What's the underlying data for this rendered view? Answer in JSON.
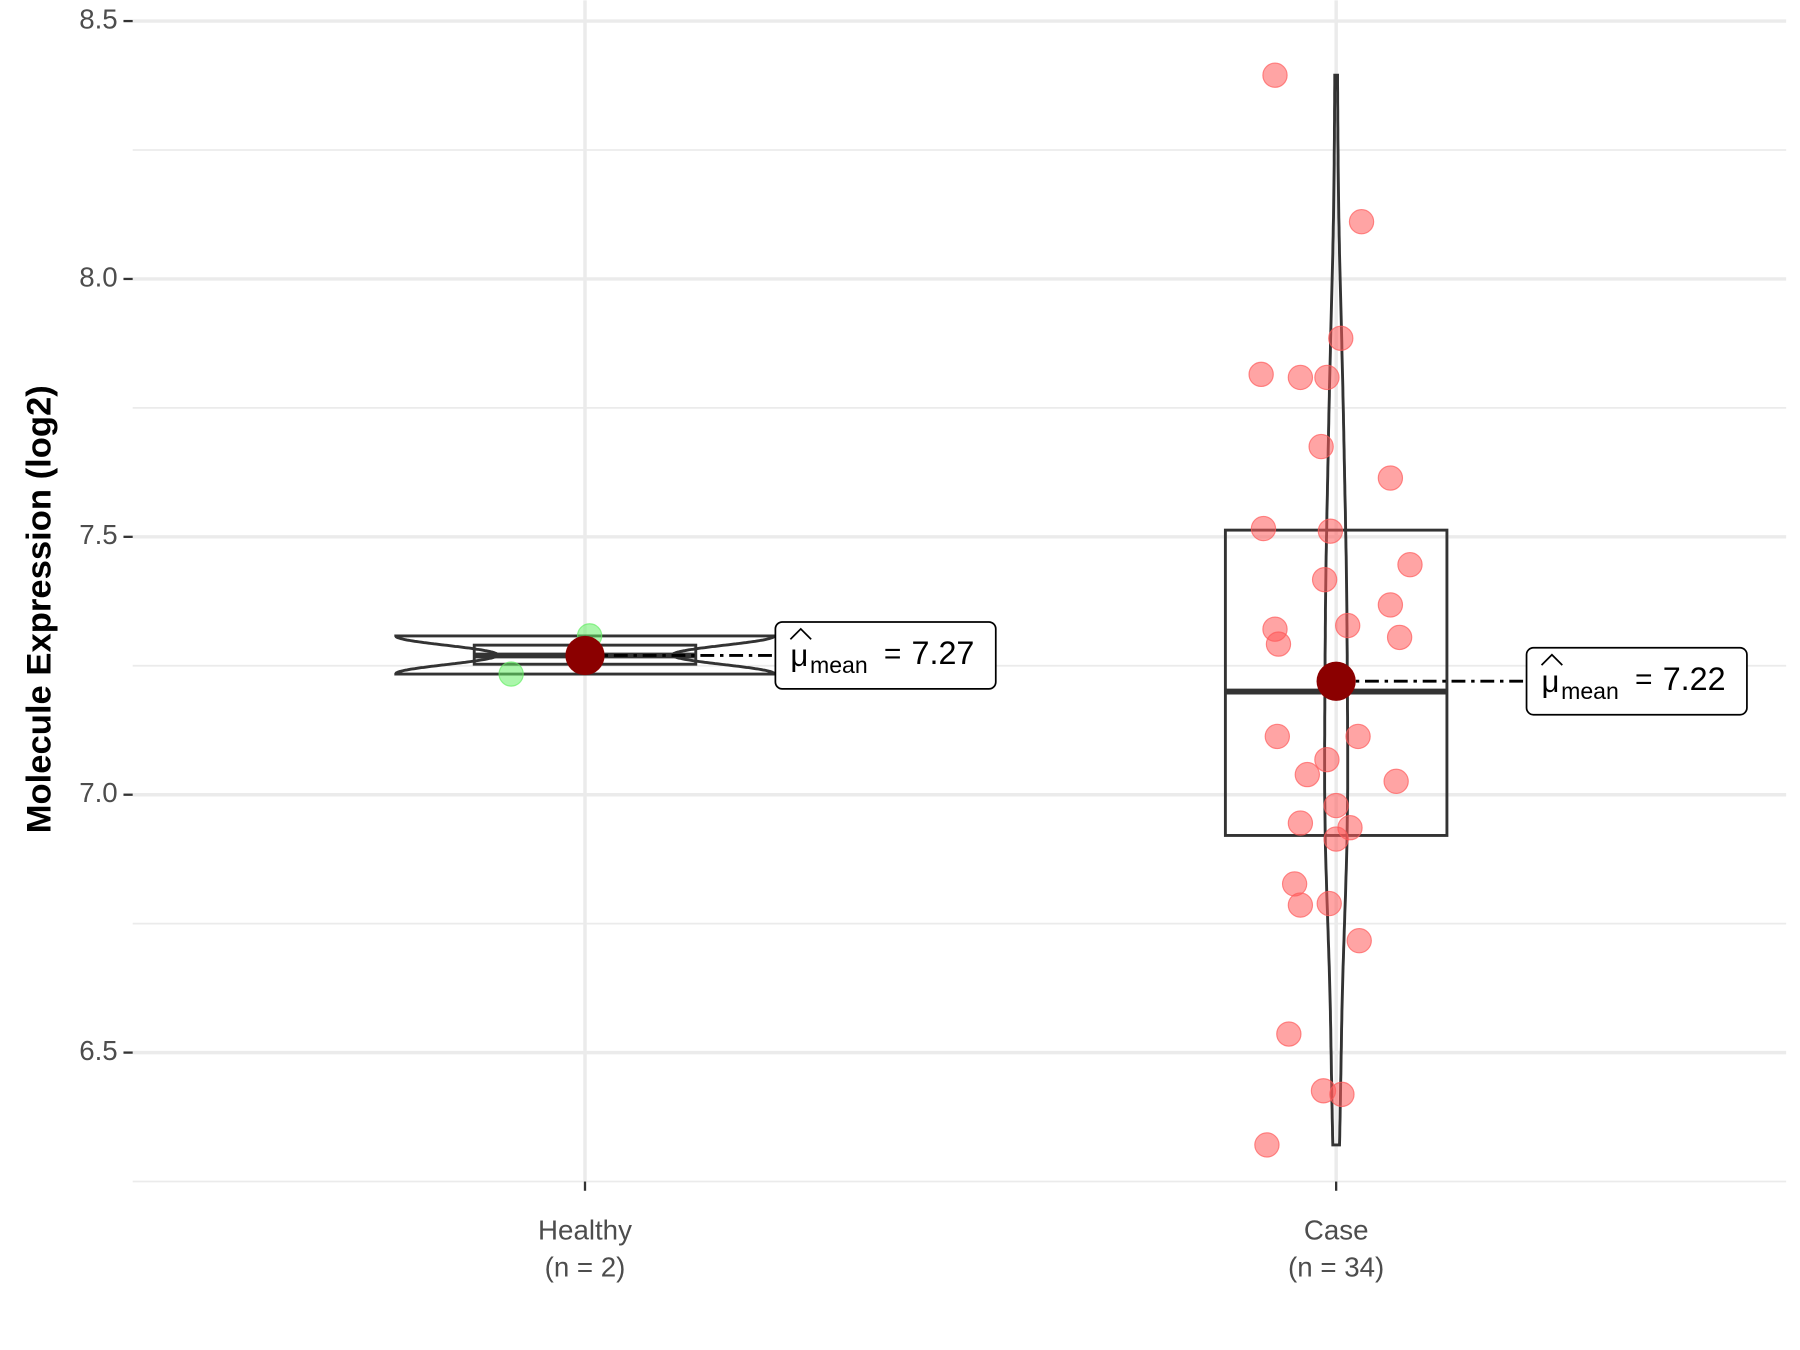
{
  "chart_data": {
    "type": "violin",
    "y_label": "Molecule Expression (log2)",
    "categories": [
      "Healthy",
      "Case"
    ],
    "category_counts": [
      "(n = 2)",
      "(n = 34)"
    ],
    "series": [
      {
        "color": "#66ee66",
        "values": [
          7.308,
          7.234
        ],
        "box": {
          "q1": 7.253,
          "median": 7.27,
          "q3": 7.29
        },
        "mean": 7.27,
        "mean_label": "7.27"
      },
      {
        "color": "#ff5a5a",
        "values": [
          8.395,
          8.111,
          7.885,
          7.815,
          7.809,
          7.809,
          7.675,
          7.614,
          7.516,
          7.511,
          7.446,
          7.417,
          7.368,
          7.321,
          7.328,
          7.305,
          7.292,
          7.113,
          7.113,
          7.068,
          7.039,
          7.026,
          6.979,
          6.945,
          6.936,
          6.914,
          6.827,
          6.786,
          6.789,
          6.717,
          6.536,
          6.426,
          6.419,
          6.321
        ],
        "box": {
          "q1": 6.921,
          "median": 7.2,
          "q3": 7.513
        },
        "mean": 7.22,
        "mean_label": "7.22"
      }
    ],
    "mean_symbol": "μ",
    "mean_subscript": "mean",
    "mean_equals": "=",
    "mean_color": "#8b0000",
    "ylim": [
      6.25,
      8.54
    ],
    "yticks": [
      6.5,
      {
        "value": 7,
        "label": "7.0"
      },
      7.5,
      {
        "value": 8,
        "label": "8.0"
      },
      8.5
    ],
    "minor_yticks": [
      6.25,
      6.75,
      7.25,
      7.75,
      8.25
    ],
    "grid": true
  }
}
